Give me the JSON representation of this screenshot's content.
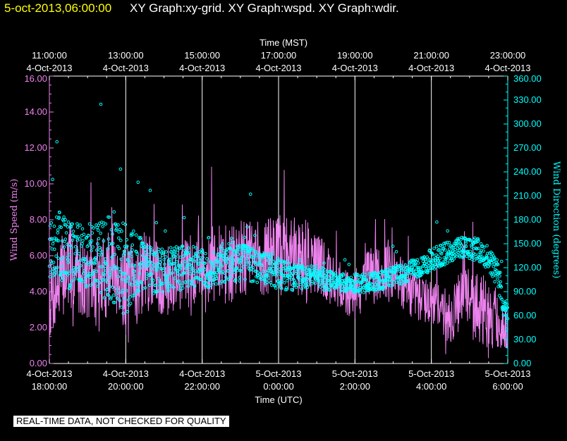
{
  "header": {
    "timestamp": "5-oct-2013,06:00:00",
    "titles": "XY Graph:xy-grid.  XY Graph:wspd.  XY Graph:wdir."
  },
  "disclaimer": "REAL-TIME DATA, NOT CHECKED FOR QUALITY",
  "colors": {
    "background": "#000000",
    "wind_speed": "#ee82ee",
    "wind_direction": "#00ffff",
    "grid": "#ffffff",
    "header_time": "#ffff00"
  },
  "chart_data": {
    "type": "line",
    "top_axis_title": "Time (MST)",
    "bottom_axis_title": "Time (UTC)",
    "left_axis_title": "Wind Speed (m/s)",
    "right_axis_title": "Wind Direction (degrees)",
    "x_range_hours_utc": [
      18,
      30
    ],
    "left_ylim": [
      0,
      16
    ],
    "right_ylim": [
      0,
      360
    ],
    "left_ticks": [
      "0.00",
      "2.00",
      "4.00",
      "6.00",
      "8.00",
      "10.00",
      "12.00",
      "14.00",
      "16.00"
    ],
    "right_ticks": [
      "0.00",
      "30.00",
      "60.00",
      "90.00",
      "120.00",
      "150.00",
      "180.00",
      "210.00",
      "240.00",
      "270.00",
      "300.00",
      "330.00",
      "360.00"
    ],
    "bottom_ticks": [
      {
        "hour": 18,
        "date": "4-Oct-2013",
        "time": "18:00:00"
      },
      {
        "hour": 20,
        "date": "4-Oct-2013",
        "time": "20:00:00"
      },
      {
        "hour": 22,
        "date": "4-Oct-2013",
        "time": "22:00:00"
      },
      {
        "hour": 24,
        "date": "5-Oct-2013",
        "time": "0:00:00"
      },
      {
        "hour": 26,
        "date": "5-Oct-2013",
        "time": "2:00:00"
      },
      {
        "hour": 28,
        "date": "5-Oct-2013",
        "time": "4:00:00"
      },
      {
        "hour": 30,
        "date": "5-Oct-2013",
        "time": "6:00:00"
      }
    ],
    "top_ticks": [
      {
        "hour": 18,
        "time": "11:00:00",
        "date": "4-Oct-2013"
      },
      {
        "hour": 20,
        "time": "13:00:00",
        "date": "4-Oct-2013"
      },
      {
        "hour": 22,
        "time": "15:00:00",
        "date": "4-Oct-2013"
      },
      {
        "hour": 24,
        "time": "17:00:00",
        "date": "4-Oct-2013"
      },
      {
        "hour": 26,
        "time": "19:00:00",
        "date": "4-Oct-2013"
      },
      {
        "hour": 28,
        "time": "21:00:00",
        "date": "4-Oct-2013"
      },
      {
        "hour": 30,
        "time": "23:00:00",
        "date": "4-Oct-2013"
      }
    ],
    "grid_hours": [
      20,
      22,
      24,
      26,
      28
    ],
    "series": [
      {
        "axis": "left",
        "style": "line",
        "x": [
          18.0,
          18.25,
          18.5,
          18.75,
          19.0,
          19.25,
          19.5,
          19.75,
          20.0,
          20.25,
          20.5,
          20.75,
          21.0,
          21.25,
          21.5,
          21.75,
          22.0,
          22.25,
          22.5,
          22.75,
          23.0,
          23.25,
          23.5,
          23.75,
          24.0,
          24.25,
          24.5,
          24.75,
          25.0,
          25.25,
          25.5,
          25.75,
          26.0,
          26.25,
          26.5,
          26.75,
          27.0,
          27.25,
          27.5,
          27.75,
          28.0,
          28.25,
          28.5,
          28.75,
          29.0,
          29.25,
          29.5,
          29.75,
          30.0
        ],
        "y": [
          3.5,
          4.5,
          5.5,
          5.0,
          4.5,
          4.0,
          5.0,
          5.5,
          4.0,
          4.5,
          5.0,
          5.0,
          4.5,
          4.8,
          5.0,
          5.2,
          5.5,
          5.5,
          5.5,
          5.5,
          5.8,
          6.0,
          5.8,
          6.0,
          6.0,
          6.0,
          6.0,
          5.8,
          5.5,
          5.0,
          4.5,
          4.0,
          3.8,
          4.5,
          5.0,
          5.2,
          4.8,
          4.5,
          4.0,
          3.5,
          3.5,
          3.0,
          2.5,
          3.5,
          3.5,
          3.0,
          2.8,
          2.2,
          1.8
        ],
        "spread": [
          2.2,
          2.5,
          2.5,
          2.2,
          2.0,
          2.5,
          2.5,
          2.8,
          2.5,
          2.5,
          2.2,
          2.0,
          2.0,
          2.0,
          2.0,
          2.0,
          2.0,
          2.2,
          2.2,
          2.2,
          2.2,
          2.0,
          2.2,
          2.2,
          2.5,
          2.2,
          2.2,
          2.5,
          2.0,
          1.8,
          1.5,
          1.2,
          1.5,
          1.5,
          1.8,
          1.5,
          1.8,
          1.5,
          1.5,
          1.2,
          1.2,
          1.5,
          1.5,
          1.8,
          2.0,
          2.0,
          2.0,
          1.5,
          1.0
        ],
        "seed": 7
      },
      {
        "axis": "right",
        "style": "scatter",
        "x": [
          18.0,
          18.25,
          18.5,
          18.75,
          19.0,
          19.25,
          19.5,
          19.75,
          20.0,
          20.25,
          20.5,
          20.75,
          21.0,
          21.25,
          21.5,
          21.75,
          22.0,
          22.25,
          22.5,
          22.75,
          23.0,
          23.25,
          23.5,
          23.75,
          24.0,
          24.25,
          24.5,
          24.75,
          25.0,
          25.25,
          25.5,
          25.75,
          26.0,
          26.25,
          26.5,
          26.75,
          27.0,
          27.25,
          27.5,
          27.75,
          28.0,
          28.25,
          28.5,
          28.75,
          29.0,
          29.25,
          29.5,
          29.75,
          30.0
        ],
        "y": [
          140,
          150,
          135,
          140,
          135,
          130,
          135,
          130,
          120,
          125,
          120,
          115,
          115,
          118,
          120,
          122,
          120,
          120,
          125,
          128,
          128,
          125,
          120,
          118,
          112,
          110,
          108,
          108,
          108,
          105,
          103,
          102,
          100,
          100,
          102,
          105,
          110,
          112,
          118,
          122,
          130,
          135,
          140,
          145,
          145,
          142,
          130,
          110,
          50
        ],
        "spread": [
          35,
          40,
          45,
          35,
          40,
          45,
          55,
          60,
          60,
          40,
          35,
          30,
          28,
          28,
          28,
          25,
          25,
          25,
          25,
          25,
          25,
          22,
          20,
          20,
          20,
          18,
          16,
          15,
          15,
          14,
          12,
          12,
          12,
          12,
          12,
          12,
          12,
          12,
          12,
          12,
          14,
          14,
          14,
          14,
          14,
          14,
          14,
          18,
          20
        ],
        "seed": 13
      }
    ]
  }
}
